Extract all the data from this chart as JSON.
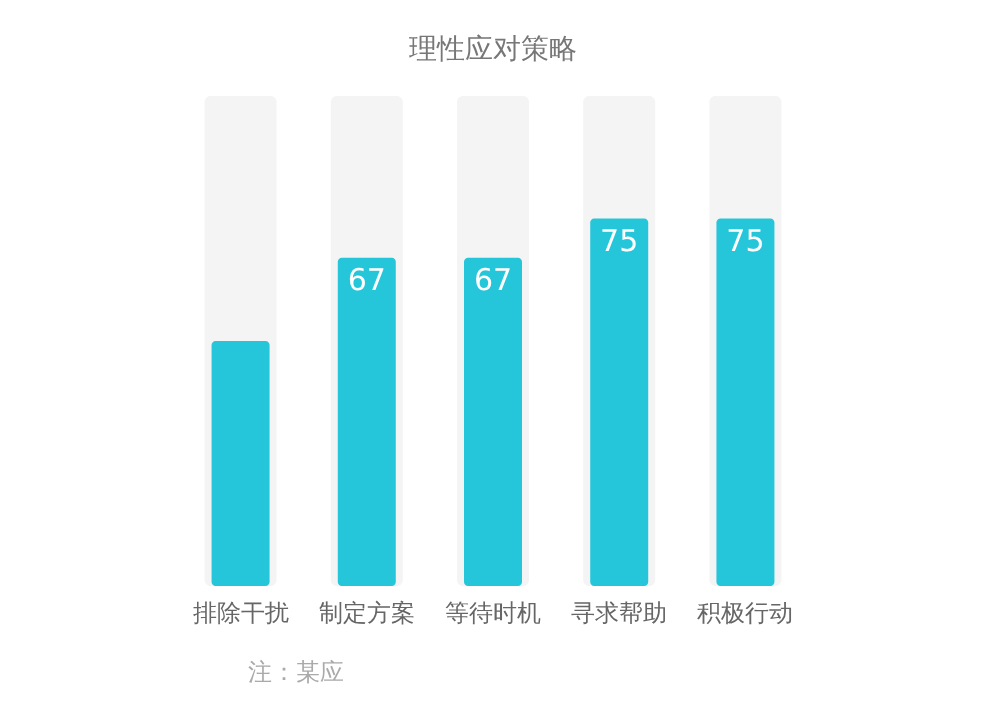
{
  "chart_data": {
    "type": "bar",
    "title": "理性应对策略",
    "categories": [
      "排除干扰",
      "制定方案",
      "等待时机",
      "寻求帮助",
      "积极行动"
    ],
    "values": [
      50,
      67,
      67,
      75,
      75
    ],
    "value_labels": [
      null,
      "67",
      "67",
      "75",
      "75"
    ],
    "color": "#26c6da",
    "ylim": [
      0,
      100
    ],
    "tick_labels": "x",
    "annotations": [
      "注：某应"
    ]
  }
}
